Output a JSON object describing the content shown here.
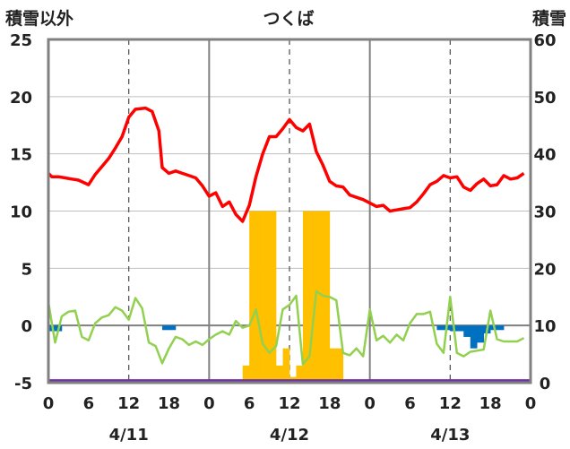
{
  "title": "つくば",
  "left_axis_label": "積雪以外",
  "right_axis_label": "積雪",
  "chart_data": {
    "type": "line",
    "title": "つくば",
    "y_left": {
      "label": "積雪以外",
      "ylim": [
        -5,
        25
      ],
      "ticks": [
        -5,
        0,
        5,
        10,
        15,
        20,
        25
      ]
    },
    "y_right": {
      "label": "積雪",
      "ylim": [
        0,
        60
      ],
      "ticks": [
        0,
        10,
        20,
        30,
        40,
        50,
        60
      ]
    },
    "x_hour_ticks": [
      "0",
      "6",
      "12",
      "18",
      "0",
      "6",
      "12",
      "18",
      "0",
      "6",
      "12",
      "18",
      "0"
    ],
    "x_day_labels": [
      "4/11",
      "4/12",
      "4/13"
    ],
    "xlim_hours": [
      0,
      72
    ],
    "grid": "vertical dashed at 12h, solid day boundaries",
    "series": [
      {
        "color": "#ff0000",
        "axis": "left",
        "points": [
          [
            0,
            13.3
          ],
          [
            0.5,
            13.0
          ],
          [
            1.5,
            13.0
          ],
          [
            2.5,
            12.9
          ],
          [
            3.5,
            12.8
          ],
          [
            4.5,
            12.7
          ],
          [
            6,
            12.3
          ],
          [
            7,
            13.2
          ],
          [
            8,
            13.9
          ],
          [
            9,
            14.6
          ],
          [
            10,
            15.5
          ],
          [
            11,
            16.5
          ],
          [
            12,
            18.2
          ],
          [
            13,
            18.9
          ],
          [
            14.5,
            19.0
          ],
          [
            15.5,
            18.7
          ],
          [
            16.5,
            17.0
          ],
          [
            17,
            13.8
          ],
          [
            18,
            13.3
          ],
          [
            19,
            13.5
          ],
          [
            20,
            13.3
          ],
          [
            21,
            13.1
          ],
          [
            22,
            12.9
          ],
          [
            23,
            12.2
          ],
          [
            24,
            11.3
          ],
          [
            25,
            11.6
          ],
          [
            26,
            10.4
          ],
          [
            27,
            10.8
          ],
          [
            28,
            9.7
          ],
          [
            29,
            9.1
          ],
          [
            30,
            10.5
          ],
          [
            31,
            13.0
          ],
          [
            32,
            15.0
          ],
          [
            33,
            16.5
          ],
          [
            34,
            16.5
          ],
          [
            35,
            17.2
          ],
          [
            36,
            18.0
          ],
          [
            37,
            17.3
          ],
          [
            38,
            17.0
          ],
          [
            39,
            17.6
          ],
          [
            40,
            15.2
          ],
          [
            41,
            14.0
          ],
          [
            42,
            12.6
          ],
          [
            43,
            12.2
          ],
          [
            44,
            12.1
          ],
          [
            45,
            11.4
          ],
          [
            46,
            11.2
          ],
          [
            47,
            11.0
          ],
          [
            48,
            10.7
          ],
          [
            49,
            10.4
          ],
          [
            50,
            10.5
          ],
          [
            51,
            10.0
          ],
          [
            52,
            10.1
          ],
          [
            53,
            10.2
          ],
          [
            54,
            10.3
          ],
          [
            55,
            10.8
          ],
          [
            56,
            11.5
          ],
          [
            57,
            12.3
          ],
          [
            58,
            12.6
          ],
          [
            59,
            13.1
          ],
          [
            60,
            12.9
          ],
          [
            61,
            13.0
          ],
          [
            62,
            12.1
          ],
          [
            63,
            11.8
          ],
          [
            64,
            12.4
          ],
          [
            65,
            12.8
          ],
          [
            66,
            12.2
          ],
          [
            67,
            12.3
          ],
          [
            68,
            13.1
          ],
          [
            69,
            12.8
          ],
          [
            70,
            12.9
          ],
          [
            71,
            13.3
          ]
        ]
      },
      {
        "color": "#92d050",
        "axis": "left",
        "points": [
          [
            0,
            2.0
          ],
          [
            1,
            -1.5
          ],
          [
            2,
            0.8
          ],
          [
            3,
            1.2
          ],
          [
            4,
            1.3
          ],
          [
            5,
            -1.0
          ],
          [
            6,
            -1.3
          ],
          [
            7,
            0.2
          ],
          [
            8,
            0.7
          ],
          [
            9,
            0.9
          ],
          [
            10,
            1.6
          ],
          [
            11,
            1.3
          ],
          [
            12,
            0.5
          ],
          [
            13,
            2.4
          ],
          [
            14,
            1.5
          ],
          [
            15,
            -1.5
          ],
          [
            16,
            -1.8
          ],
          [
            17,
            -3.3
          ],
          [
            18,
            -2.0
          ],
          [
            19,
            -1.0
          ],
          [
            20,
            -1.2
          ],
          [
            21,
            -1.7
          ],
          [
            22,
            -1.4
          ],
          [
            23,
            -1.7
          ],
          [
            24,
            -1.2
          ],
          [
            25,
            -0.8
          ],
          [
            26,
            -0.5
          ],
          [
            27,
            -0.8
          ],
          [
            28,
            0.4
          ],
          [
            29,
            -0.2
          ],
          [
            30,
            0.0
          ],
          [
            31,
            1.4
          ],
          [
            32,
            -1.6
          ],
          [
            33,
            -2.4
          ],
          [
            34,
            -1.8
          ],
          [
            35,
            1.4
          ],
          [
            36,
            1.8
          ],
          [
            37,
            2.6
          ],
          [
            38,
            -3.4
          ],
          [
            39,
            -2.7
          ],
          [
            40,
            3.0
          ],
          [
            41,
            2.6
          ],
          [
            42,
            2.5
          ],
          [
            43,
            2.2
          ],
          [
            44,
            -2.4
          ],
          [
            45,
            -2.6
          ],
          [
            46,
            -2.0
          ],
          [
            47,
            -2.7
          ],
          [
            48,
            1.4
          ],
          [
            49,
            -1.3
          ],
          [
            50,
            -0.9
          ],
          [
            51,
            -1.5
          ],
          [
            52,
            -0.8
          ],
          [
            53,
            -1.3
          ],
          [
            54,
            0.2
          ],
          [
            55,
            1.0
          ],
          [
            56,
            1.0
          ],
          [
            57,
            1.2
          ],
          [
            58,
            -1.6
          ],
          [
            59,
            -2.4
          ],
          [
            60,
            2.5
          ],
          [
            61,
            -2.4
          ],
          [
            62,
            -2.7
          ],
          [
            63,
            -2.3
          ],
          [
            64,
            -2.2
          ],
          [
            65,
            -2.1
          ],
          [
            66,
            1.3
          ],
          [
            67,
            -1.2
          ],
          [
            68,
            -1.4
          ],
          [
            69,
            -1.4
          ],
          [
            70,
            -1.4
          ],
          [
            71,
            -1.1
          ]
        ]
      },
      {
        "color": "#7030a0",
        "axis": "left",
        "points": [
          [
            0,
            -4.8
          ],
          [
            72,
            -4.8
          ]
        ]
      }
    ],
    "bars_left": {
      "color": "#0070c0",
      "items": [
        [
          0,
          -0.5
        ],
        [
          1,
          -0.5
        ],
        [
          17,
          -0.4
        ],
        [
          18,
          -0.4
        ],
        [
          58,
          -0.4
        ],
        [
          59,
          -0.4
        ],
        [
          60,
          -0.5
        ],
        [
          61,
          -0.5
        ],
        [
          62,
          -1.0
        ],
        [
          63,
          -2.0
        ],
        [
          64,
          -1.5
        ],
        [
          65,
          -0.7
        ],
        [
          66,
          -0.4
        ],
        [
          67,
          -0.4
        ]
      ]
    },
    "bars_right": {
      "color": "#ffc000",
      "items": [
        [
          29,
          3
        ],
        [
          30,
          30
        ],
        [
          31,
          30
        ],
        [
          32,
          30
        ],
        [
          33,
          30
        ],
        [
          34,
          3
        ],
        [
          35,
          6
        ],
        [
          36,
          1
        ],
        [
          37,
          3
        ],
        [
          38,
          30
        ],
        [
          39,
          30
        ],
        [
          40,
          30
        ],
        [
          41,
          30
        ],
        [
          42,
          6
        ],
        [
          43,
          6
        ]
      ]
    }
  }
}
